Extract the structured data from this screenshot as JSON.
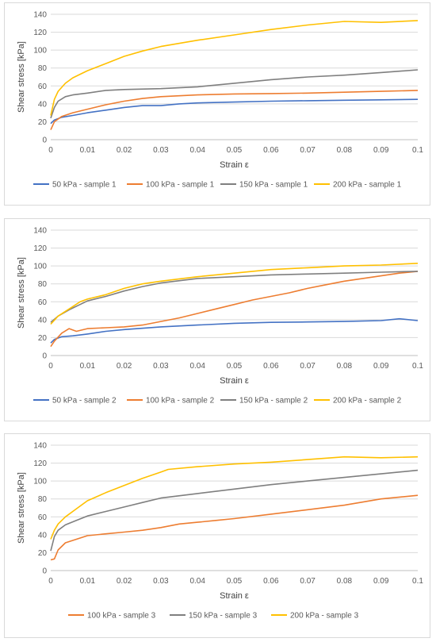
{
  "chart_data": [
    {
      "type": "line",
      "xlabel": "Strain ε",
      "ylabel": "Shear stress [kPa]",
      "xlim": [
        0,
        0.1
      ],
      "ylim": [
        0,
        140
      ],
      "xticks": [
        "0",
        "0.01",
        "0.02",
        "0.03",
        "0.04",
        "0.05",
        "0.06",
        "0.07",
        "0.08",
        "0.09",
        "0.1"
      ],
      "yticks": [
        "0",
        "20",
        "40",
        "60",
        "80",
        "100",
        "120",
        "140"
      ],
      "grid": "horizontal",
      "legend": "bottom",
      "series": [
        {
          "name": "50 kPa - sample 1",
          "color": "#4472C4",
          "x": [
            0,
            0.001,
            0.003,
            0.006,
            0.01,
            0.015,
            0.02,
            0.025,
            0.03,
            0.035,
            0.04,
            0.05,
            0.06,
            0.07,
            0.08,
            0.09,
            0.1
          ],
          "y": [
            18,
            22,
            25,
            27,
            30,
            33,
            36,
            38,
            38,
            40,
            41,
            42,
            43,
            43.5,
            44,
            44.5,
            45
          ]
        },
        {
          "name": "100 kPa - sample 1",
          "color": "#ED7D31",
          "x": [
            0,
            0.001,
            0.003,
            0.006,
            0.01,
            0.015,
            0.02,
            0.025,
            0.03,
            0.04,
            0.05,
            0.06,
            0.07,
            0.08,
            0.09,
            0.1
          ],
          "y": [
            11,
            20,
            26,
            30,
            34,
            39,
            43,
            46,
            48,
            50,
            51,
            51.5,
            52,
            53,
            54,
            55
          ]
        },
        {
          "name": "150 kPa - sample 1",
          "color": "#7F7F7F",
          "x": [
            0,
            0.001,
            0.002,
            0.004,
            0.006,
            0.01,
            0.015,
            0.02,
            0.03,
            0.04,
            0.05,
            0.06,
            0.07,
            0.08,
            0.09,
            0.1
          ],
          "y": [
            24,
            36,
            43,
            48,
            50,
            52,
            55,
            56,
            57,
            59,
            63,
            67,
            70,
            72,
            75,
            78
          ]
        },
        {
          "name": "200 kPa - sample 1",
          "color": "#FFC000",
          "x": [
            0,
            0.001,
            0.002,
            0.004,
            0.006,
            0.008,
            0.01,
            0.015,
            0.02,
            0.025,
            0.03,
            0.04,
            0.05,
            0.06,
            0.07,
            0.08,
            0.09,
            0.1
          ],
          "y": [
            27,
            45,
            54,
            63,
            69,
            73,
            77,
            85,
            93,
            99,
            104,
            111,
            117,
            123,
            128,
            132,
            131,
            133
          ]
        }
      ]
    },
    {
      "type": "line",
      "xlabel": "Strain ε",
      "ylabel": "Shear stress [kPa]",
      "xlim": [
        0,
        0.1
      ],
      "ylim": [
        0,
        140
      ],
      "xticks": [
        "0",
        "0.01",
        "0.02",
        "0.03",
        "0.04",
        "0.05",
        "0.06",
        "0.07",
        "0.08",
        "0.09",
        "0.1"
      ],
      "yticks": [
        "0",
        "20",
        "40",
        "60",
        "80",
        "100",
        "120",
        "140"
      ],
      "grid": "horizontal",
      "legend": "bottom",
      "series": [
        {
          "name": "50 kPa - sample 2",
          "color": "#4472C4",
          "x": [
            0,
            0.001,
            0.003,
            0.006,
            0.01,
            0.015,
            0.02,
            0.03,
            0.04,
            0.05,
            0.06,
            0.07,
            0.08,
            0.09,
            0.095,
            0.1
          ],
          "y": [
            14,
            18,
            21,
            22,
            24,
            27,
            29,
            32,
            34,
            36,
            37,
            37.5,
            38,
            39,
            41,
            39
          ]
        },
        {
          "name": "100 kPa - sample 2",
          "color": "#ED7D31",
          "x": [
            0,
            0.001,
            0.003,
            0.005,
            0.007,
            0.01,
            0.015,
            0.02,
            0.025,
            0.03,
            0.035,
            0.04,
            0.045,
            0.05,
            0.055,
            0.06,
            0.065,
            0.07,
            0.075,
            0.08,
            0.085,
            0.09,
            0.095,
            0.1
          ],
          "y": [
            10,
            16,
            25,
            30,
            27,
            30,
            31,
            32,
            34,
            38,
            42,
            47,
            52,
            57,
            62,
            66,
            70,
            75,
            79,
            83,
            86,
            89,
            92,
            94
          ]
        },
        {
          "name": "150 kPa - sample 2",
          "color": "#7F7F7F",
          "x": [
            0,
            0.002,
            0.005,
            0.008,
            0.01,
            0.015,
            0.02,
            0.025,
            0.03,
            0.04,
            0.05,
            0.06,
            0.07,
            0.08,
            0.09,
            0.1
          ],
          "y": [
            37,
            44,
            51,
            57,
            61,
            66,
            72,
            77,
            81,
            86,
            88,
            90,
            91,
            92,
            93,
            94
          ]
        },
        {
          "name": "200 kPa - sample 2",
          "color": "#FFC000",
          "x": [
            0,
            0.002,
            0.005,
            0.008,
            0.01,
            0.015,
            0.02,
            0.025,
            0.03,
            0.04,
            0.05,
            0.06,
            0.07,
            0.08,
            0.09,
            0.1
          ],
          "y": [
            35,
            44,
            52,
            60,
            63,
            68,
            75,
            80,
            83,
            88,
            92,
            96,
            98,
            100,
            101,
            103
          ]
        }
      ]
    },
    {
      "type": "line",
      "xlabel": "Strain ε",
      "ylabel": "Shear stress [kPa]",
      "xlim": [
        0,
        0.1
      ],
      "ylim": [
        0,
        140
      ],
      "xticks": [
        "0",
        "0.01",
        "0.02",
        "0.03",
        "0.04",
        "0.05",
        "0.06",
        "0.07",
        "0.08",
        "0.09",
        "0.1"
      ],
      "yticks": [
        "0",
        "20",
        "40",
        "60",
        "80",
        "100",
        "120",
        "140"
      ],
      "grid": "horizontal",
      "legend": "bottom",
      "series": [
        {
          "name": "100 kPa - sample 3",
          "color": "#ED7D31",
          "x": [
            0,
            0.001,
            0.002,
            0.004,
            0.007,
            0.01,
            0.015,
            0.02,
            0.025,
            0.03,
            0.035,
            0.04,
            0.045,
            0.05,
            0.06,
            0.07,
            0.08,
            0.09,
            0.1
          ],
          "y": [
            12,
            13,
            23,
            31,
            35,
            39,
            41,
            43,
            45,
            48,
            52,
            54,
            56,
            58,
            63,
            68,
            73,
            80,
            84
          ]
        },
        {
          "name": "150 kPa - sample 3",
          "color": "#7F7F7F",
          "x": [
            0,
            0.001,
            0.002,
            0.004,
            0.007,
            0.01,
            0.015,
            0.02,
            0.025,
            0.03,
            0.04,
            0.05,
            0.06,
            0.07,
            0.08,
            0.09,
            0.1
          ],
          "y": [
            22,
            38,
            45,
            51,
            56,
            61,
            66,
            71,
            76,
            81,
            86,
            91,
            96,
            100,
            104,
            108,
            112
          ]
        },
        {
          "name": "200 kPa - sample 3",
          "color": "#FFC000",
          "x": [
            0,
            0.001,
            0.002,
            0.004,
            0.007,
            0.01,
            0.015,
            0.02,
            0.025,
            0.03,
            0.032,
            0.04,
            0.05,
            0.06,
            0.07,
            0.08,
            0.09,
            0.1
          ],
          "y": [
            35,
            45,
            52,
            60,
            69,
            78,
            87,
            95,
            103,
            110,
            113,
            116,
            119,
            121,
            124,
            127,
            126,
            127
          ]
        }
      ]
    }
  ]
}
